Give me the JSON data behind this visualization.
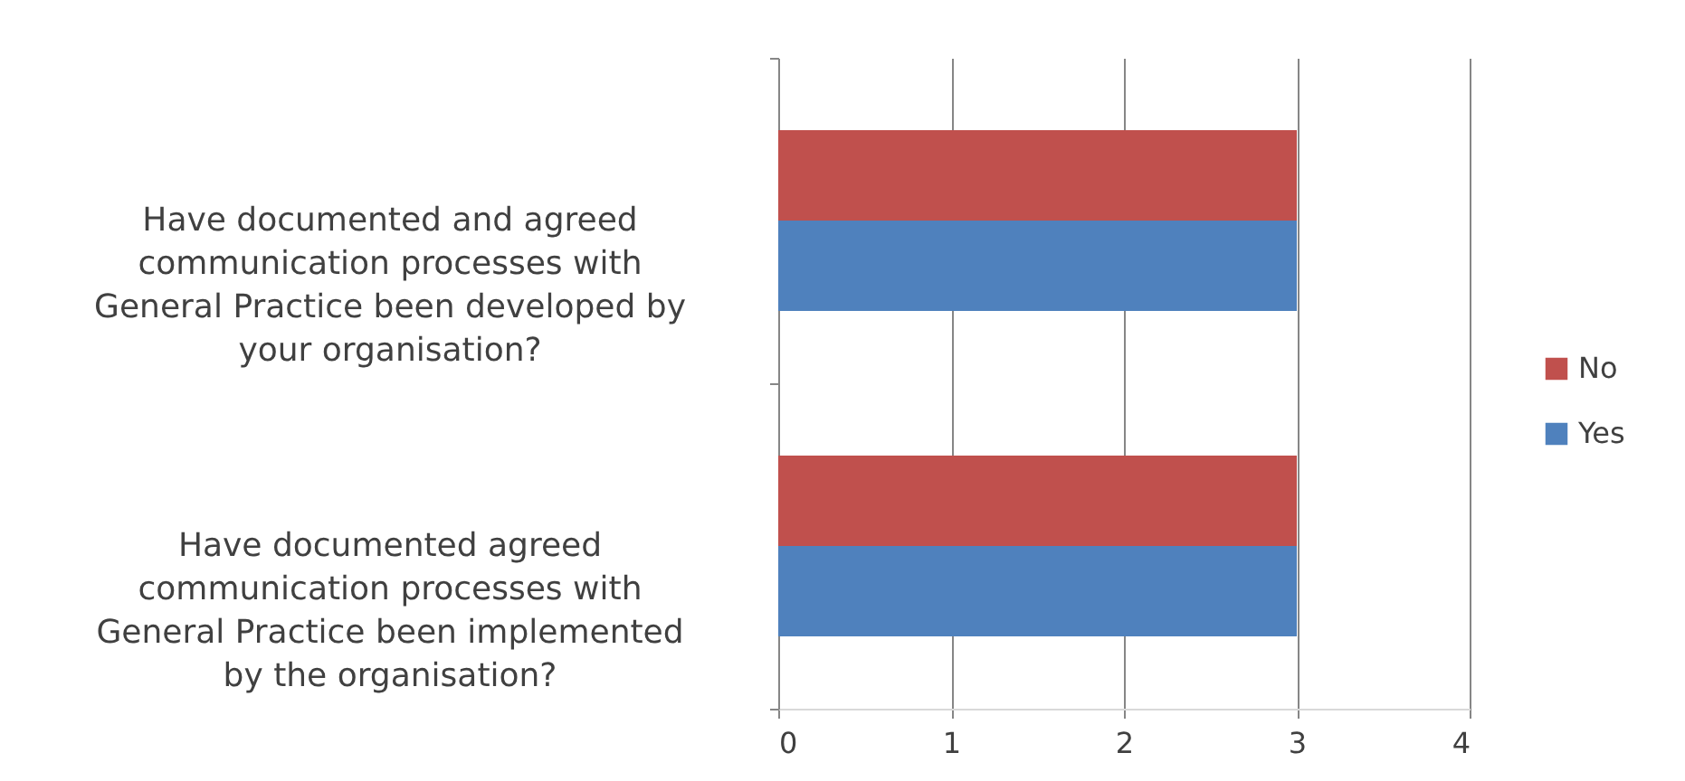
{
  "chart_data": {
    "type": "bar",
    "orientation": "horizontal",
    "categories": [
      "Have documented and agreed communication processes with General Practice been developed by your organisation?",
      "Have documented agreed communication processes with General Practice been implemented by the organisation?"
    ],
    "series": [
      {
        "name": "No",
        "color": "#c0504d",
        "values": [
          3,
          3
        ]
      },
      {
        "name": "Yes",
        "color": "#4f81bd",
        "values": [
          3,
          3
        ]
      }
    ],
    "xlim": [
      0,
      4
    ],
    "xticks": [
      0,
      1,
      2,
      3,
      4
    ],
    "grid": "x",
    "legend": "right"
  }
}
